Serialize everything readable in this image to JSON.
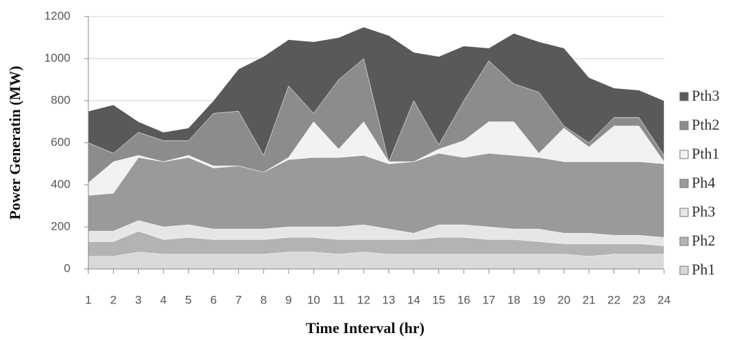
{
  "chart_data": {
    "type": "stacked-area",
    "x_label": "Time Interval (hr)",
    "y_label": "Power Generatin (MW)",
    "x": [
      1,
      2,
      3,
      4,
      5,
      6,
      7,
      8,
      9,
      10,
      11,
      12,
      13,
      14,
      15,
      16,
      17,
      18,
      19,
      20,
      21,
      22,
      23,
      24
    ],
    "xlim": [
      1,
      24
    ],
    "xticks": [
      1,
      2,
      3,
      4,
      5,
      6,
      7,
      8,
      9,
      10,
      11,
      12,
      13,
      14,
      15,
      16,
      17,
      18,
      19,
      20,
      21,
      22,
      23,
      24
    ],
    "ylim": [
      0,
      1200
    ],
    "yticks": [
      0,
      200,
      400,
      600,
      800,
      1000,
      1200
    ],
    "grid": true,
    "legend": "right",
    "series": [
      {
        "name": "Ph1",
        "color": "#d9d9d9",
        "values": [
          60,
          60,
          80,
          70,
          70,
          70,
          70,
          70,
          80,
          80,
          70,
          80,
          70,
          70,
          70,
          70,
          70,
          70,
          70,
          70,
          60,
          70,
          70,
          70
        ]
      },
      {
        "name": "Ph2",
        "color": "#b3b3b3",
        "values": [
          70,
          70,
          100,
          70,
          80,
          70,
          70,
          70,
          70,
          70,
          70,
          60,
          70,
          70,
          80,
          80,
          70,
          70,
          60,
          50,
          60,
          50,
          50,
          40
        ]
      },
      {
        "name": "Ph3",
        "color": "#e6e6e6",
        "values": [
          50,
          50,
          50,
          60,
          60,
          50,
          50,
          50,
          50,
          50,
          60,
          70,
          50,
          30,
          60,
          60,
          60,
          50,
          60,
          50,
          50,
          40,
          40,
          40
        ]
      },
      {
        "name": "Ph4",
        "color": "#9a9a9a",
        "values": [
          170,
          180,
          300,
          310,
          320,
          290,
          300,
          270,
          320,
          330,
          330,
          330,
          310,
          340,
          340,
          320,
          350,
          350,
          340,
          340,
          340,
          350,
          350,
          350
        ]
      },
      {
        "name": "Pth1",
        "color": "#f2f2f2",
        "values": [
          60,
          150,
          10,
          0,
          10,
          10,
          0,
          0,
          10,
          170,
          40,
          160,
          10,
          0,
          20,
          80,
          150,
          160,
          20,
          160,
          70,
          170,
          170,
          10
        ]
      },
      {
        "name": "Pth2",
        "color": "#8c8c8c",
        "values": [
          190,
          40,
          110,
          100,
          70,
          250,
          260,
          80,
          340,
          40,
          330,
          300,
          0,
          290,
          20,
          190,
          290,
          180,
          290,
          10,
          20,
          40,
          40,
          30
        ]
      },
      {
        "name": "Pth3",
        "color": "#595959",
        "values": [
          150,
          230,
          50,
          40,
          60,
          60,
          200,
          470,
          220,
          340,
          200,
          150,
          600,
          230,
          420,
          260,
          60,
          240,
          240,
          370,
          310,
          140,
          130,
          260
        ]
      }
    ]
  }
}
